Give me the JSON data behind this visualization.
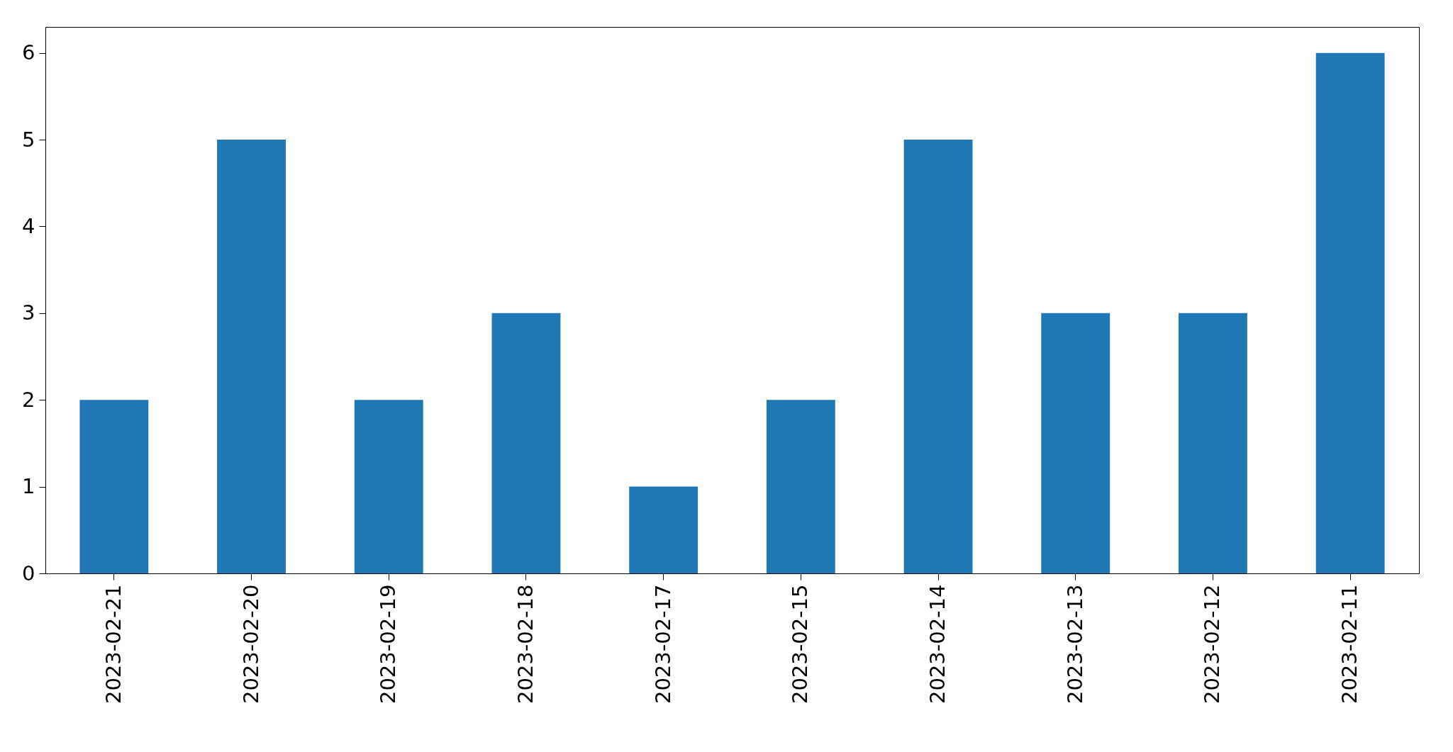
{
  "chart_data": {
    "type": "bar",
    "categories": [
      "2023-02-21",
      "2023-02-20",
      "2023-02-19",
      "2023-02-18",
      "2023-02-17",
      "2023-02-15",
      "2023-02-14",
      "2023-02-13",
      "2023-02-12",
      "2023-02-11"
    ],
    "values": [
      2,
      5,
      2,
      3,
      1,
      2,
      5,
      3,
      3,
      6
    ],
    "color": "#1f77b4",
    "ylim": [
      0,
      6.3
    ],
    "yticks": [
      0,
      1,
      2,
      3,
      4,
      5,
      6
    ],
    "grid": false
  }
}
